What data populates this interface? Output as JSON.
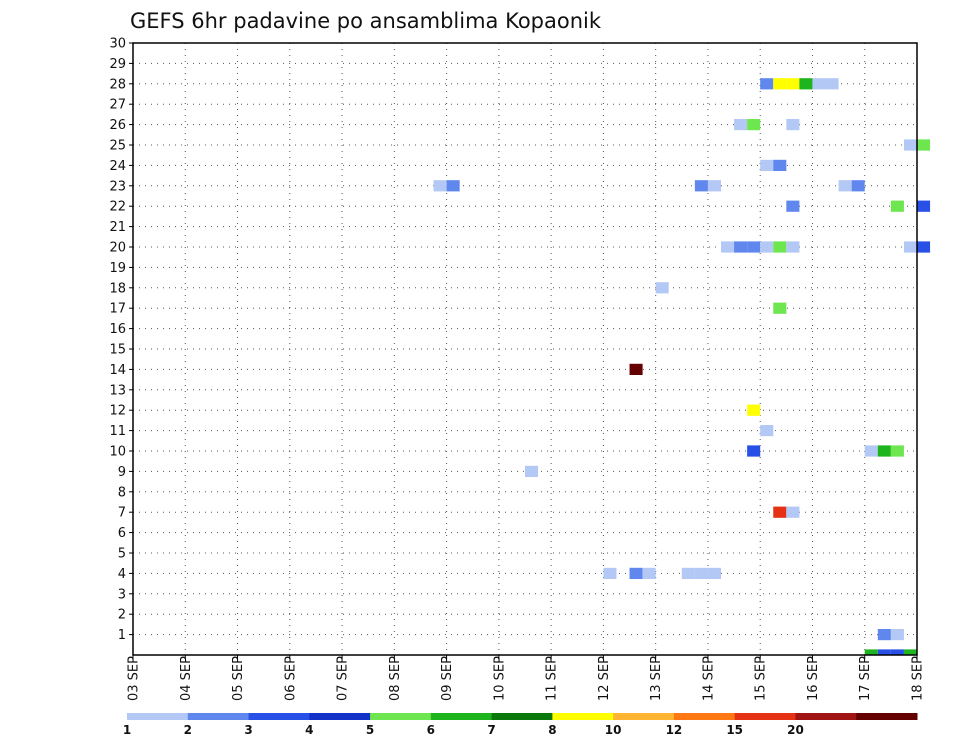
{
  "chart_data": {
    "type": "heatmap",
    "title": "GEFS 6hr padavine po ansamblima Kopaonik",
    "x_tick_labels": [
      "03 SEP",
      "04 SEP",
      "05 SEP",
      "06 SEP",
      "07 SEP",
      "08 SEP",
      "09 SEP",
      "10 SEP",
      "11 SEP",
      "12 SEP",
      "13 SEP",
      "14 SEP",
      "15 SEP",
      "16 SEP",
      "17 SEP",
      "18 SEP"
    ],
    "y_tick_labels": [
      "1",
      "2",
      "3",
      "4",
      "5",
      "6",
      "7",
      "8",
      "9",
      "10",
      "11",
      "12",
      "13",
      "14",
      "15",
      "16",
      "17",
      "18",
      "19",
      "20",
      "21",
      "22",
      "23",
      "24",
      "25",
      "26",
      "27",
      "28",
      "29",
      "30"
    ],
    "x_range_days": [
      0,
      15
    ],
    "y_range": [
      0,
      30
    ],
    "grid": true,
    "legend": {
      "placement": "bottom",
      "labels": [
        "1",
        "2",
        "3",
        "4",
        "5",
        "6",
        "7",
        "8",
        "10",
        "12",
        "15",
        "20"
      ],
      "colors": [
        "#b4c8f5",
        "#5f87ee",
        "#2850e6",
        "#1432c8",
        "#6ee650",
        "#1eb41e",
        "#0a780a",
        "#ffff00",
        "#ffb432",
        "#ff7814",
        "#e63214",
        "#a01414",
        "#640000"
      ]
    },
    "cells_note": "each cell: member (y), time in days since 03 SEP 00Z (x), 6-hour width, color class index into legend.colors",
    "cells": [
      {
        "member": 28,
        "day": 12.0,
        "cls": 1
      },
      {
        "member": 28,
        "day": 12.25,
        "cls": 7
      },
      {
        "member": 28,
        "day": 12.5,
        "cls": 7
      },
      {
        "member": 28,
        "day": 12.75,
        "cls": 5
      },
      {
        "member": 28,
        "day": 13.0,
        "cls": 0
      },
      {
        "member": 28,
        "day": 13.25,
        "cls": 0
      },
      {
        "member": 26,
        "day": 11.5,
        "cls": 0
      },
      {
        "member": 26,
        "day": 11.75,
        "cls": 4
      },
      {
        "member": 26,
        "day": 12.5,
        "cls": 0
      },
      {
        "member": 25,
        "day": 14.75,
        "cls": 0
      },
      {
        "member": 25,
        "day": 15.0,
        "cls": 4
      },
      {
        "member": 24,
        "day": 12.0,
        "cls": 0
      },
      {
        "member": 24,
        "day": 12.25,
        "cls": 1
      },
      {
        "member": 23,
        "day": 5.75,
        "cls": 0
      },
      {
        "member": 23,
        "day": 6.0,
        "cls": 1
      },
      {
        "member": 23,
        "day": 10.75,
        "cls": 1
      },
      {
        "member": 23,
        "day": 11.0,
        "cls": 0
      },
      {
        "member": 23,
        "day": 13.5,
        "cls": 0
      },
      {
        "member": 23,
        "day": 13.75,
        "cls": 1
      },
      {
        "member": 22,
        "day": 12.5,
        "cls": 1
      },
      {
        "member": 22,
        "day": 14.5,
        "cls": 4
      },
      {
        "member": 22,
        "day": 15.0,
        "cls": 2
      },
      {
        "member": 20,
        "day": 11.25,
        "cls": 0
      },
      {
        "member": 20,
        "day": 11.5,
        "cls": 1
      },
      {
        "member": 20,
        "day": 11.75,
        "cls": 1
      },
      {
        "member": 20,
        "day": 12.0,
        "cls": 0
      },
      {
        "member": 20,
        "day": 12.25,
        "cls": 4
      },
      {
        "member": 20,
        "day": 12.5,
        "cls": 0
      },
      {
        "member": 20,
        "day": 14.75,
        "cls": 0
      },
      {
        "member": 20,
        "day": 15.0,
        "cls": 2
      },
      {
        "member": 18,
        "day": 10.0,
        "cls": 0
      },
      {
        "member": 17,
        "day": 12.25,
        "cls": 4
      },
      {
        "member": 14,
        "day": 9.5,
        "cls": 12
      },
      {
        "member": 12,
        "day": 11.75,
        "cls": 7
      },
      {
        "member": 11,
        "day": 12.0,
        "cls": 0
      },
      {
        "member": 10,
        "day": 11.75,
        "cls": 2
      },
      {
        "member": 10,
        "day": 14.0,
        "cls": 0
      },
      {
        "member": 10,
        "day": 14.25,
        "cls": 5
      },
      {
        "member": 10,
        "day": 14.5,
        "cls": 4
      },
      {
        "member": 9,
        "day": 7.5,
        "cls": 0
      },
      {
        "member": 7,
        "day": 12.25,
        "cls": 10
      },
      {
        "member": 7,
        "day": 12.5,
        "cls": 0
      },
      {
        "member": 4,
        "day": 9.0,
        "cls": 0
      },
      {
        "member": 4,
        "day": 9.5,
        "cls": 1
      },
      {
        "member": 4,
        "day": 9.75,
        "cls": 0
      },
      {
        "member": 4,
        "day": 10.5,
        "cls": 0
      },
      {
        "member": 4,
        "day": 10.75,
        "cls": 0
      },
      {
        "member": 4,
        "day": 11.0,
        "cls": 0
      },
      {
        "member": 1,
        "day": 14.25,
        "cls": 1
      },
      {
        "member": 1,
        "day": 14.5,
        "cls": 0
      },
      {
        "member": 0,
        "day": 14.0,
        "cls": 5
      },
      {
        "member": 0,
        "day": 14.25,
        "cls": 2
      },
      {
        "member": 0,
        "day": 14.5,
        "cls": 2
      },
      {
        "member": 0,
        "day": 14.75,
        "cls": 5
      }
    ]
  }
}
